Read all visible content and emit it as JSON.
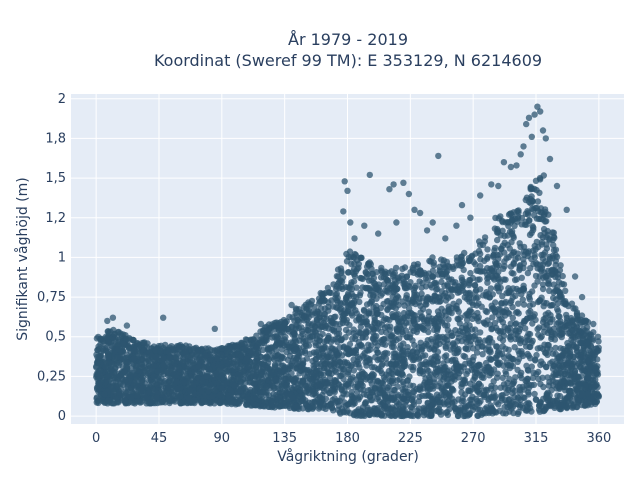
{
  "chart_data": {
    "type": "scatter",
    "title_line1": "År 1979 - 2019",
    "title_line2": "Koordinat (Sweref 99 TM): E 353129, N 6214609",
    "xlabel": "Vågriktning (grader)",
    "ylabel": "Signifikant våghöjd (m)",
    "xlim": [
      -18,
      378
    ],
    "ylim": [
      -0.05,
      2.03
    ],
    "x_ticks": [
      0,
      45,
      90,
      135,
      180,
      225,
      270,
      315,
      360
    ],
    "x_tick_labels": [
      "0",
      "45",
      "90",
      "135",
      "180",
      "225",
      "270",
      "315",
      "360"
    ],
    "y_ticks": [
      0,
      0.25,
      0.5,
      0.75,
      1,
      1.25,
      1.5,
      1.75,
      2
    ],
    "y_tick_labels": [
      "0",
      "0,25",
      "0,5",
      "0,75",
      "1",
      "1,2",
      "1,5",
      "1,8",
      "2"
    ],
    "grid": true,
    "marker_color": "#2e5670",
    "plot_background": "#e5ecf6",
    "upper_envelope": {
      "x": [
        0,
        10,
        20,
        30,
        45,
        60,
        75,
        90,
        105,
        120,
        135,
        150,
        165,
        175,
        180,
        190,
        200,
        210,
        225,
        240,
        255,
        270,
        285,
        300,
        310,
        315,
        320,
        325,
        330,
        340,
        350,
        360
      ],
      "y": [
        0.5,
        0.55,
        0.52,
        0.48,
        0.45,
        0.45,
        0.43,
        0.43,
        0.47,
        0.56,
        0.63,
        0.72,
        0.8,
        0.95,
        1.05,
        1.0,
        0.95,
        0.93,
        0.95,
        1.0,
        1.0,
        1.05,
        1.25,
        1.3,
        1.4,
        1.6,
        1.55,
        1.3,
        1.05,
        0.72,
        0.62,
        0.5
      ]
    },
    "lower_envelope": {
      "x": [
        0,
        45,
        90,
        135,
        170,
        180,
        225,
        270,
        315,
        340,
        360
      ],
      "y": [
        0.08,
        0.08,
        0.08,
        0.05,
        0.03,
        0.0,
        0.0,
        0.0,
        0.02,
        0.05,
        0.08
      ]
    },
    "outliers": [
      {
        "x": 8,
        "y": 0.6
      },
      {
        "x": 12,
        "y": 0.62
      },
      {
        "x": 22,
        "y": 0.57
      },
      {
        "x": 48,
        "y": 0.62
      },
      {
        "x": 85,
        "y": 0.55
      },
      {
        "x": 118,
        "y": 0.58
      },
      {
        "x": 140,
        "y": 0.7
      },
      {
        "x": 170,
        "y": 0.83
      },
      {
        "x": 177,
        "y": 1.29
      },
      {
        "x": 178,
        "y": 1.48
      },
      {
        "x": 180,
        "y": 1.42
      },
      {
        "x": 182,
        "y": 1.22
      },
      {
        "x": 185,
        "y": 1.12
      },
      {
        "x": 192,
        "y": 1.2
      },
      {
        "x": 196,
        "y": 1.52
      },
      {
        "x": 202,
        "y": 1.15
      },
      {
        "x": 210,
        "y": 1.43
      },
      {
        "x": 213,
        "y": 1.46
      },
      {
        "x": 215,
        "y": 1.22
      },
      {
        "x": 220,
        "y": 1.47
      },
      {
        "x": 224,
        "y": 1.4
      },
      {
        "x": 228,
        "y": 1.3
      },
      {
        "x": 232,
        "y": 1.28
      },
      {
        "x": 237,
        "y": 1.17
      },
      {
        "x": 241,
        "y": 1.22
      },
      {
        "x": 245,
        "y": 1.64
      },
      {
        "x": 250,
        "y": 1.12
      },
      {
        "x": 258,
        "y": 1.2
      },
      {
        "x": 262,
        "y": 1.33
      },
      {
        "x": 268,
        "y": 1.25
      },
      {
        "x": 275,
        "y": 1.39
      },
      {
        "x": 283,
        "y": 1.46
      },
      {
        "x": 288,
        "y": 1.45
      },
      {
        "x": 292,
        "y": 1.6
      },
      {
        "x": 297,
        "y": 1.57
      },
      {
        "x": 301,
        "y": 1.58
      },
      {
        "x": 304,
        "y": 1.65
      },
      {
        "x": 306,
        "y": 1.7
      },
      {
        "x": 308,
        "y": 1.84
      },
      {
        "x": 310,
        "y": 1.88
      },
      {
        "x": 312,
        "y": 1.76
      },
      {
        "x": 314,
        "y": 1.9
      },
      {
        "x": 316,
        "y": 1.95
      },
      {
        "x": 318,
        "y": 1.92
      },
      {
        "x": 320,
        "y": 1.8
      },
      {
        "x": 322,
        "y": 1.75
      },
      {
        "x": 325,
        "y": 1.62
      },
      {
        "x": 330,
        "y": 1.45
      },
      {
        "x": 337,
        "y": 1.3
      },
      {
        "x": 343,
        "y": 0.88
      },
      {
        "x": 348,
        "y": 0.75
      },
      {
        "x": 356,
        "y": 0.58
      }
    ]
  }
}
